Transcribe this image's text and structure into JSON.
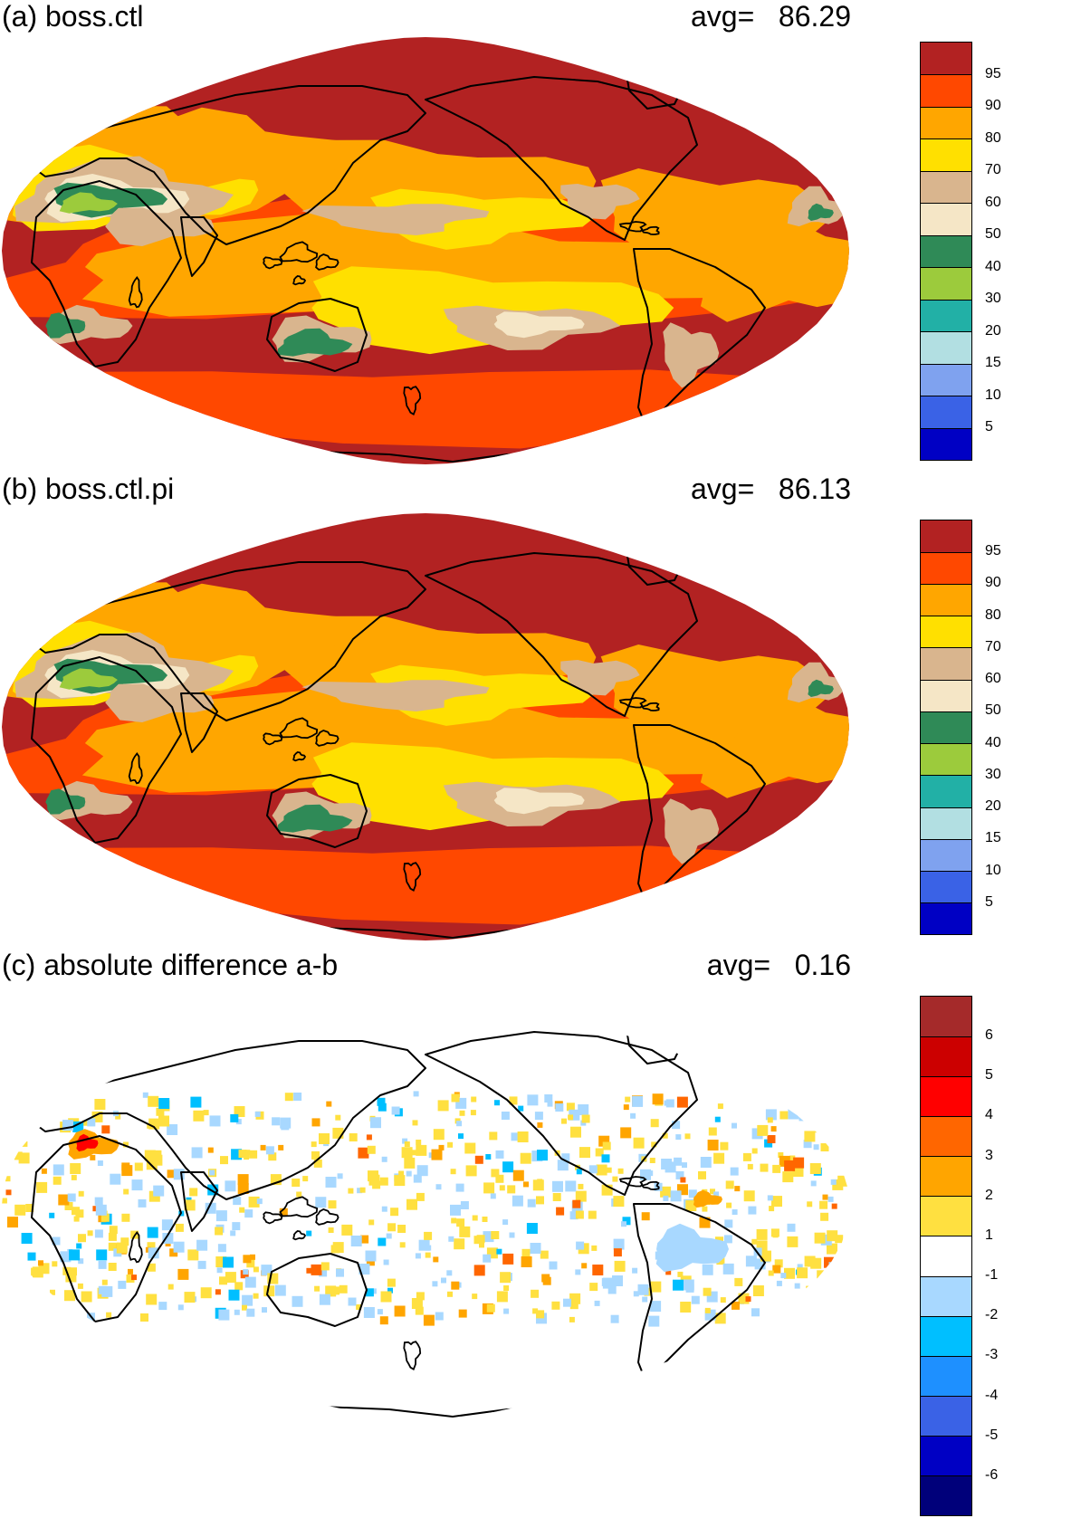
{
  "panels": [
    {
      "title": "(a) boss.ctl",
      "avg_label": "avg=",
      "avg_value": "86.29",
      "colorbar": {
        "colors": [
          "#0000c4",
          "#3a62e6",
          "#7fa2ef",
          "#b2dfe2",
          "#22b0a6",
          "#9ccb3c",
          "#2f8a57",
          "#f5e6c6",
          "#d9b58e",
          "#ffe000",
          "#ffa600",
          "#ff4800",
          "#b22222"
        ],
        "labels": [
          "5",
          "10",
          "15",
          "20",
          "30",
          "40",
          "50",
          "60",
          "70",
          "80",
          "90",
          "95"
        ]
      },
      "map_fill": {
        "base": "#b22222",
        "bands": [
          "#ff4800",
          "#ffa600",
          "#ffe000",
          "#d9b58e",
          "#f5e6c6",
          "#2f8a57",
          "#9ccb3c"
        ]
      }
    },
    {
      "title": "(b) boss.ctl.pi",
      "avg_label": "avg=",
      "avg_value": "86.13",
      "colorbar": {
        "colors": [
          "#0000c4",
          "#3a62e6",
          "#7fa2ef",
          "#b2dfe2",
          "#22b0a6",
          "#9ccb3c",
          "#2f8a57",
          "#f5e6c6",
          "#d9b58e",
          "#ffe000",
          "#ffa600",
          "#ff4800",
          "#b22222"
        ],
        "labels": [
          "5",
          "10",
          "15",
          "20",
          "30",
          "40",
          "50",
          "60",
          "70",
          "80",
          "90",
          "95"
        ]
      },
      "map_fill": {
        "base": "#b22222",
        "bands": [
          "#ff4800",
          "#ffa600",
          "#ffe000",
          "#d9b58e",
          "#f5e6c6",
          "#2f8a57",
          "#9ccb3c"
        ]
      }
    },
    {
      "title": "(c) absolute difference a-b",
      "avg_label": "avg=",
      "avg_value": "0.16",
      "colorbar": {
        "colors": [
          "#00007a",
          "#0000c4",
          "#3a62e6",
          "#1e90ff",
          "#00bfff",
          "#a8d8ff",
          "#ffffff",
          "#ffe040",
          "#ffa500",
          "#ff6600",
          "#ff0000",
          "#cc0000",
          "#a52a2a"
        ],
        "labels": [
          "-6",
          "-5",
          "-4",
          "-3",
          "-2",
          "-1",
          "1",
          "2",
          "3",
          "4",
          "5",
          "6"
        ]
      },
      "map_fill": {
        "base": "#ffffff",
        "bands": [
          "#ffe040",
          "#a8d8ff",
          "#ffa500",
          "#00bfff",
          "#ff6600",
          "#ff0000"
        ]
      }
    }
  ]
}
